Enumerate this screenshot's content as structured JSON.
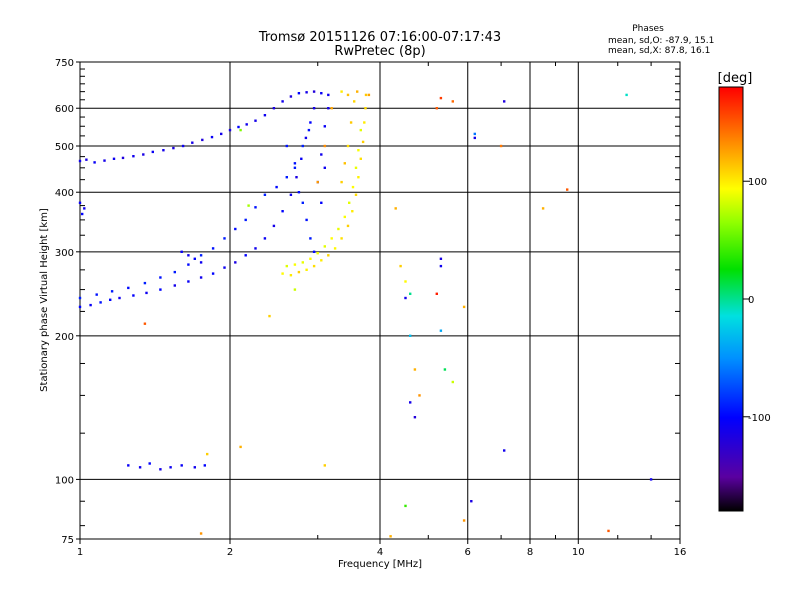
{
  "chart_data": {
    "type": "scatter",
    "title": "Tromsø 20151126 07:16:00-07:17:43",
    "subtitle": "RwPretec (8p)",
    "xlabel": "Frequency [MHz]",
    "ylabel": "Stationary phase Virtual Height [km]",
    "x_scale": "log",
    "y_scale": "log",
    "xlim": [
      1,
      16
    ],
    "ylim": [
      75,
      750
    ],
    "x_ticks": [
      1,
      2,
      4,
      6,
      8,
      10,
      16
    ],
    "x_tick_labels": [
      "1",
      "2",
      "4",
      "6",
      "8",
      "10",
      "16"
    ],
    "y_ticks": [
      75,
      100,
      200,
      300,
      400,
      500,
      600,
      750
    ],
    "y_tick_labels": [
      "75",
      "100",
      "200",
      "300",
      "400",
      "500",
      "600",
      "750"
    ],
    "grid": true,
    "stats": {
      "heading": "Phases",
      "line1": "mean, sd,O: -87.9, 15.1",
      "line2": "mean, sd,X:  87.8, 16.1"
    },
    "colorbar": {
      "label": "[deg]",
      "range": [
        -180,
        180
      ],
      "ticks": [
        100,
        0,
        -100
      ],
      "tick_labels": [
        "100",
        "0",
        "-100"
      ]
    },
    "series": [
      {
        "points": [
          [
            1.0,
            465,
            -110
          ],
          [
            1.03,
            468,
            -115
          ],
          [
            1.07,
            462,
            -105
          ],
          [
            1.12,
            466,
            -112
          ],
          [
            1.17,
            470,
            -108
          ],
          [
            1.22,
            472,
            -118
          ],
          [
            1.28,
            476,
            -110
          ],
          [
            1.34,
            480,
            -114
          ],
          [
            1.4,
            486,
            -106
          ],
          [
            1.47,
            490,
            -112
          ],
          [
            1.54,
            495,
            -116
          ],
          [
            1.61,
            500,
            -108
          ],
          [
            1.68,
            508,
            -113
          ],
          [
            1.76,
            515,
            -118
          ],
          [
            1.84,
            522,
            -105
          ],
          [
            1.92,
            530,
            -111
          ],
          [
            2.0,
            540,
            -115
          ],
          [
            2.08,
            548,
            -100
          ],
          [
            2.16,
            555,
            -110
          ],
          [
            2.25,
            565,
            -112
          ],
          [
            2.35,
            580,
            -108
          ],
          [
            2.45,
            600,
            -115
          ],
          [
            2.55,
            620,
            -110
          ],
          [
            2.65,
            635,
            -118
          ],
          [
            2.75,
            645,
            -100
          ],
          [
            2.85,
            648,
            -112
          ],
          [
            2.95,
            650,
            -120
          ],
          [
            3.05,
            645,
            -105
          ],
          [
            3.15,
            640,
            -110
          ],
          [
            1.0,
            380,
            -105
          ],
          [
            1.02,
            370,
            -110
          ],
          [
            1.01,
            360,
            -100
          ],
          [
            1.0,
            230,
            -100
          ],
          [
            1.05,
            232,
            -105
          ],
          [
            1.1,
            235,
            -95
          ],
          [
            1.15,
            238,
            -100
          ],
          [
            1.2,
            240,
            -110
          ],
          [
            1.28,
            243,
            -102
          ],
          [
            1.36,
            246,
            -108
          ],
          [
            1.45,
            250,
            -100
          ],
          [
            1.55,
            255,
            -112
          ],
          [
            1.65,
            260,
            -105
          ],
          [
            1.75,
            265,
            -110
          ],
          [
            1.85,
            270,
            -100
          ],
          [
            1.95,
            278,
            -108
          ],
          [
            2.05,
            285,
            -115
          ],
          [
            2.15,
            295,
            -102
          ],
          [
            2.25,
            305,
            -110
          ],
          [
            2.35,
            320,
            -106
          ],
          [
            2.45,
            340,
            -112
          ],
          [
            2.55,
            365,
            -100
          ],
          [
            2.65,
            395,
            -108
          ],
          [
            2.72,
            430,
            -115
          ],
          [
            2.78,
            470,
            -105
          ],
          [
            2.84,
            520,
            -110
          ],
          [
            2.9,
            560,
            -100
          ],
          [
            2.95,
            600,
            -112
          ],
          [
            1.0,
            240,
            -90
          ],
          [
            1.08,
            244,
            -95
          ],
          [
            1.16,
            248,
            -92
          ],
          [
            1.25,
            252,
            -98
          ],
          [
            1.35,
            258,
            -90
          ],
          [
            1.45,
            265,
            -95
          ],
          [
            1.55,
            272,
            -92
          ],
          [
            1.65,
            282,
            -98
          ],
          [
            1.75,
            295,
            -90
          ],
          [
            1.85,
            305,
            -95
          ],
          [
            1.95,
            320,
            -92
          ],
          [
            2.05,
            335,
            -98
          ],
          [
            2.15,
            350,
            -92
          ],
          [
            2.25,
            372,
            -95
          ],
          [
            2.35,
            395,
            -90
          ],
          [
            2.48,
            410,
            -98
          ],
          [
            2.6,
            430,
            -92
          ],
          [
            2.7,
            460,
            -95
          ],
          [
            2.8,
            500,
            -90
          ],
          [
            2.88,
            540,
            -95
          ],
          [
            1.6,
            300,
            -105
          ],
          [
            1.65,
            295,
            -110
          ],
          [
            1.7,
            290,
            -100
          ],
          [
            1.75,
            285,
            -108
          ],
          [
            1.25,
            107,
            -105
          ],
          [
            1.32,
            106,
            -110
          ],
          [
            1.38,
            108,
            -100
          ],
          [
            1.45,
            105,
            -112
          ],
          [
            1.52,
            106,
            -108
          ],
          [
            1.6,
            107,
            -105
          ],
          [
            1.7,
            106,
            -110
          ],
          [
            1.78,
            107,
            -100
          ],
          [
            2.6,
            500,
            -95
          ],
          [
            2.7,
            450,
            -92
          ],
          [
            2.75,
            400,
            -98
          ],
          [
            2.8,
            380,
            -90
          ],
          [
            2.85,
            350,
            -95
          ],
          [
            2.9,
            320,
            -92
          ],
          [
            2.95,
            300,
            -98
          ],
          [
            3.0,
            420,
            -100
          ],
          [
            3.05,
            480,
            -110
          ],
          [
            3.1,
            550,
            -105
          ],
          [
            3.15,
            600,
            -112
          ],
          [
            3.1,
            450,
            -108
          ],
          [
            3.05,
            380,
            -102
          ],
          [
            4.5,
            240,
            -110
          ],
          [
            4.6,
            145,
            -112
          ],
          [
            4.7,
            135,
            -120
          ],
          [
            5.3,
            290,
            -115
          ],
          [
            5.3,
            280,
            -108
          ],
          [
            6.2,
            520,
            -112
          ],
          [
            7.1,
            620,
            -118
          ],
          [
            7.1,
            115,
            -110
          ],
          [
            6.1,
            90,
            -115
          ],
          [
            14.0,
            100,
            -110
          ]
        ]
      },
      {
        "points": [
          [
            2.55,
            270,
            95
          ],
          [
            2.65,
            268,
            100
          ],
          [
            2.75,
            272,
            110
          ],
          [
            2.85,
            275,
            98
          ],
          [
            2.95,
            280,
            105
          ],
          [
            3.05,
            288,
            100
          ],
          [
            3.15,
            295,
            108
          ],
          [
            3.25,
            305,
            96
          ],
          [
            3.35,
            320,
            104
          ],
          [
            3.45,
            340,
            110
          ],
          [
            3.52,
            365,
            100
          ],
          [
            3.58,
            395,
            106
          ],
          [
            3.62,
            430,
            98
          ],
          [
            3.66,
            470,
            104
          ],
          [
            3.7,
            510,
            110
          ],
          [
            3.72,
            560,
            100
          ],
          [
            3.74,
            600,
            106
          ],
          [
            3.75,
            640,
            112
          ],
          [
            2.6,
            280,
            85
          ],
          [
            2.7,
            282,
            92
          ],
          [
            2.8,
            285,
            88
          ],
          [
            2.9,
            290,
            95
          ],
          [
            3.0,
            298,
            90
          ],
          [
            3.1,
            308,
            86
          ],
          [
            3.2,
            320,
            94
          ],
          [
            3.3,
            335,
            88
          ],
          [
            3.4,
            355,
            92
          ],
          [
            3.47,
            380,
            86
          ],
          [
            3.53,
            410,
            94
          ],
          [
            3.58,
            450,
            88
          ],
          [
            3.62,
            490,
            92
          ],
          [
            3.66,
            540,
            86
          ],
          [
            3.35,
            420,
            110
          ],
          [
            3.4,
            460,
            115
          ],
          [
            3.45,
            500,
            105
          ],
          [
            3.5,
            560,
            112
          ],
          [
            3.55,
            620,
            108
          ],
          [
            3.35,
            650,
            100
          ],
          [
            3.45,
            640,
            115
          ],
          [
            3.6,
            650,
            120
          ],
          [
            3.8,
            640,
            125
          ],
          [
            3.0,
            420,
            128
          ],
          [
            3.1,
            500,
            132
          ],
          [
            3.2,
            600,
            125
          ],
          [
            4.4,
            280,
            110
          ],
          [
            4.5,
            260,
            95
          ],
          [
            4.6,
            245,
            0
          ],
          [
            4.6,
            200,
            -30
          ],
          [
            4.7,
            170,
            120
          ],
          [
            4.8,
            150,
            130
          ],
          [
            5.3,
            205,
            -40
          ],
          [
            5.4,
            170,
            10
          ],
          [
            5.6,
            160,
            80
          ],
          [
            5.9,
            230,
            120
          ],
          [
            5.9,
            82,
            130
          ],
          [
            4.5,
            88,
            40
          ],
          [
            4.2,
            76,
            120
          ],
          [
            5.2,
            600,
            150
          ],
          [
            5.3,
            630,
            160
          ],
          [
            5.6,
            620,
            145
          ],
          [
            5.2,
            245,
            170
          ],
          [
            3.1,
            107,
            110
          ],
          [
            2.1,
            117,
            120
          ],
          [
            1.8,
            113,
            110
          ],
          [
            1.75,
            77,
            130
          ],
          [
            1.35,
            212,
            150
          ],
          [
            2.4,
            220,
            110
          ],
          [
            4.3,
            370,
            120
          ],
          [
            8.5,
            370,
            120
          ],
          [
            9.5,
            405,
            150
          ],
          [
            11.5,
            78,
            150
          ],
          [
            12.5,
            640,
            -10
          ],
          [
            7.0,
            500,
            140
          ],
          [
            6.2,
            530,
            -60
          ],
          [
            2.1,
            540,
            60
          ],
          [
            2.18,
            375,
            70
          ],
          [
            2.7,
            250,
            80
          ]
        ]
      }
    ]
  }
}
